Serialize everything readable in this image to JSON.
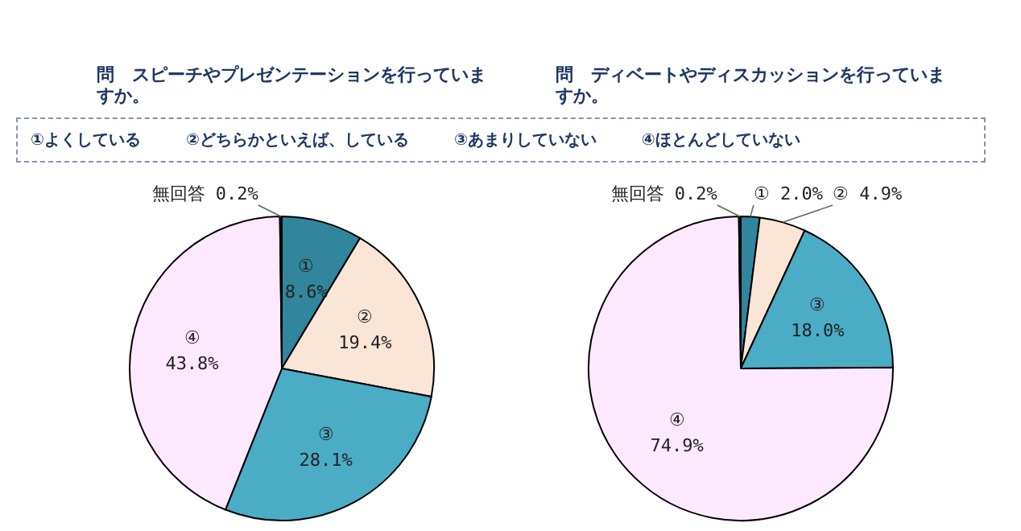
{
  "chart_data": [
    {
      "type": "pie",
      "title": "問　スピーチやプレゼンテーションを行っていますか。",
      "annotations": [
        "①よくしている",
        "②どちらかといえば、している",
        "③あまりしていない",
        "④ほとんどしていない"
      ],
      "categories": [
        "①",
        "②",
        "③",
        "④",
        "無回答"
      ],
      "values": [
        8.6,
        19.4,
        28.1,
        43.8,
        0.2
      ],
      "value_labels": [
        "8.6%",
        "19.4%",
        "28.1%",
        "43.8%",
        "0.2%"
      ],
      "colors": [
        "#31859c",
        "#fbe5d6",
        "#4bacc6",
        "#fde9fd",
        "#1f4e79"
      ],
      "legend": false
    },
    {
      "type": "pie",
      "title": "問　ディベートやディスカッションを行っていますか。",
      "categories": [
        "①",
        "②",
        "③",
        "④",
        "無回答"
      ],
      "values": [
        2.0,
        4.9,
        18.0,
        74.9,
        0.2
      ],
      "value_labels": [
        "2.0%",
        "4.9%",
        "18.0%",
        "74.9%",
        "0.2%"
      ],
      "colors": [
        "#31859c",
        "#fbe5d6",
        "#4bacc6",
        "#fde9fd",
        "#1f4e79"
      ],
      "legend": false
    }
  ]
}
